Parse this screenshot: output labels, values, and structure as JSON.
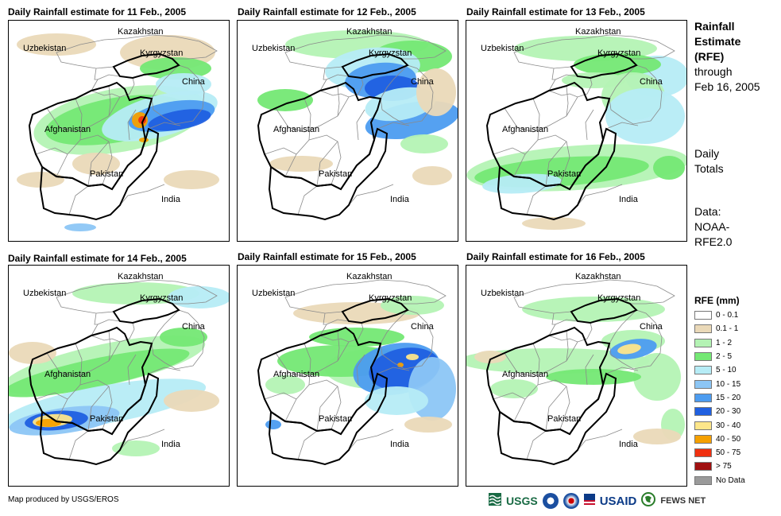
{
  "panels": [
    {
      "title": "Daily Rainfall estimate for 11 Feb., 2005"
    },
    {
      "title": "Daily Rainfall estimate for 12 Feb., 2005"
    },
    {
      "title": "Daily Rainfall estimate for 13 Feb., 2005"
    },
    {
      "title": "Daily Rainfall estimate for 14 Feb., 2005"
    },
    {
      "title": "Daily Rainfall estimate for 15 Feb., 2005"
    },
    {
      "title": "Daily Rainfall estimate for 16 Feb., 2005"
    }
  ],
  "map_labels": {
    "kazakhstan": "Kazakhstan",
    "uzbekistan": "Uzbekistan",
    "kyrgyzstan": "Kyrgyzstan",
    "china": "China",
    "afghanistan": "Afghanistan",
    "pakistan": "Pakistan",
    "india": "India"
  },
  "side_text": {
    "title_lines": [
      "Rainfall",
      "Estimate",
      "(RFE)"
    ],
    "through": "through",
    "date": "Feb 16, 2005",
    "daily": "Daily",
    "totals": "Totals",
    "data_label": "Data:",
    "data_src1": "NOAA-",
    "data_src2": "RFE2.0"
  },
  "legend": {
    "title": "RFE (mm)",
    "items": [
      {
        "label": "0 - 0.1",
        "color": "#ffffff"
      },
      {
        "label": "0.1 - 1",
        "color": "#ead9b8"
      },
      {
        "label": "1 - 2",
        "color": "#b4f3b4"
      },
      {
        "label": "2 - 5",
        "color": "#74e874"
      },
      {
        "label": "5 - 10",
        "color": "#b6ecf6"
      },
      {
        "label": "10 - 15",
        "color": "#8cc6f5"
      },
      {
        "label": "15 - 20",
        "color": "#4c9cf0"
      },
      {
        "label": "20 - 30",
        "color": "#2060e0"
      },
      {
        "label": "30 - 40",
        "color": "#fde68a"
      },
      {
        "label": "40 - 50",
        "color": "#f5a000"
      },
      {
        "label": "50 - 75",
        "color": "#f03010"
      },
      {
        "label": "> 75",
        "color": "#a01010"
      },
      {
        "label": "No Data",
        "color": "#9a9a9a"
      }
    ]
  },
  "credit": "Map produced by USGS/EROS",
  "logos": {
    "usgs": "USGS",
    "usaid": "USAID",
    "fews": "FEWS NET"
  }
}
